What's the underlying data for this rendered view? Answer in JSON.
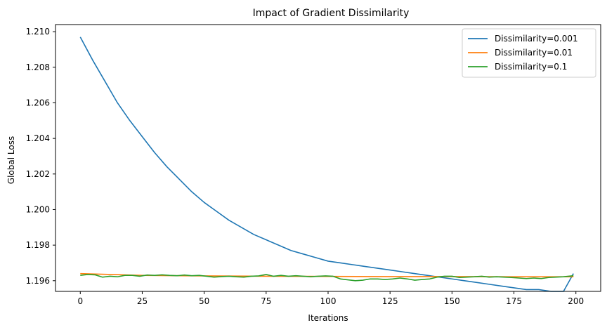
{
  "chart_data": {
    "type": "line",
    "title": "Impact of Gradient Dissimilarity",
    "xlabel": "Iterations",
    "ylabel": "Global Loss",
    "xlim": [
      -10,
      210
    ],
    "ylim": [
      1.1954,
      1.2104
    ],
    "xticks": [
      0,
      25,
      50,
      75,
      100,
      125,
      150,
      175,
      200
    ],
    "yticks": [
      1.196,
      1.198,
      1.2,
      1.202,
      1.204,
      1.206,
      1.208,
      1.21
    ],
    "ytick_labels": [
      "1.196",
      "1.198",
      "1.200",
      "1.202",
      "1.204",
      "1.206",
      "1.208",
      "1.210"
    ],
    "grid": false,
    "legend_position": "top-right",
    "series": [
      {
        "name": "Dissimilarity=0.001",
        "color": "#1f77b4",
        "x": [
          0,
          5,
          10,
          15,
          20,
          25,
          30,
          35,
          40,
          45,
          50,
          55,
          60,
          65,
          70,
          75,
          80,
          85,
          90,
          95,
          100,
          105,
          110,
          115,
          120,
          125,
          130,
          135,
          140,
          145,
          150,
          155,
          160,
          165,
          170,
          175,
          180,
          185,
          190,
          195,
          199
        ],
        "y": [
          1.2097,
          1.2084,
          1.2072,
          1.206,
          1.205,
          1.2041,
          1.2032,
          1.2024,
          1.2017,
          1.201,
          1.2004,
          1.1999,
          1.1994,
          1.199,
          1.1986,
          1.1983,
          1.198,
          1.1977,
          1.1975,
          1.1973,
          1.1971,
          1.197,
          1.1969,
          1.1968,
          1.1967,
          1.1966,
          1.1965,
          1.1964,
          1.1963,
          1.1962,
          1.1961,
          1.196,
          1.1959,
          1.1958,
          1.1957,
          1.1956,
          1.1955,
          1.1955,
          1.1954,
          1.1954,
          1.1964
        ]
      },
      {
        "name": "Dissimilarity=0.01",
        "color": "#ff7f0e",
        "x": [
          0,
          25,
          50,
          75,
          100,
          125,
          150,
          175,
          199
        ],
        "y": [
          1.1964,
          1.1963,
          1.19627,
          1.19625,
          1.19624,
          1.19623,
          1.19623,
          1.19622,
          1.19622
        ]
      },
      {
        "name": "Dissimilarity=0.1",
        "color": "#2ca02c",
        "x": [
          0,
          3,
          6,
          9,
          12,
          15,
          18,
          21,
          24,
          27,
          30,
          33,
          36,
          39,
          42,
          45,
          48,
          51,
          54,
          57,
          60,
          63,
          66,
          69,
          72,
          75,
          78,
          81,
          84,
          87,
          90,
          93,
          96,
          99,
          102,
          105,
          108,
          111,
          114,
          117,
          120,
          123,
          126,
          129,
          132,
          135,
          138,
          141,
          144,
          147,
          150,
          153,
          156,
          159,
          162,
          165,
          168,
          171,
          174,
          177,
          180,
          183,
          186,
          189,
          192,
          195,
          199
        ],
        "y": [
          1.1963,
          1.19635,
          1.19633,
          1.1962,
          1.19625,
          1.19622,
          1.1963,
          1.1963,
          1.19625,
          1.19632,
          1.1963,
          1.19633,
          1.1963,
          1.19628,
          1.19632,
          1.19628,
          1.1963,
          1.19625,
          1.1962,
          1.19623,
          1.19625,
          1.19622,
          1.1962,
          1.19625,
          1.19627,
          1.19635,
          1.19625,
          1.1963,
          1.19625,
          1.19628,
          1.19625,
          1.19622,
          1.19625,
          1.19627,
          1.19625,
          1.1961,
          1.19605,
          1.196,
          1.19603,
          1.1961,
          1.1961,
          1.19607,
          1.1961,
          1.19615,
          1.1961,
          1.19603,
          1.19607,
          1.1961,
          1.1962,
          1.19625,
          1.19625,
          1.19618,
          1.1962,
          1.19622,
          1.19625,
          1.1962,
          1.19622,
          1.1962,
          1.19618,
          1.19615,
          1.19612,
          1.19615,
          1.19612,
          1.19618,
          1.1962,
          1.19622,
          1.19628
        ]
      }
    ]
  }
}
